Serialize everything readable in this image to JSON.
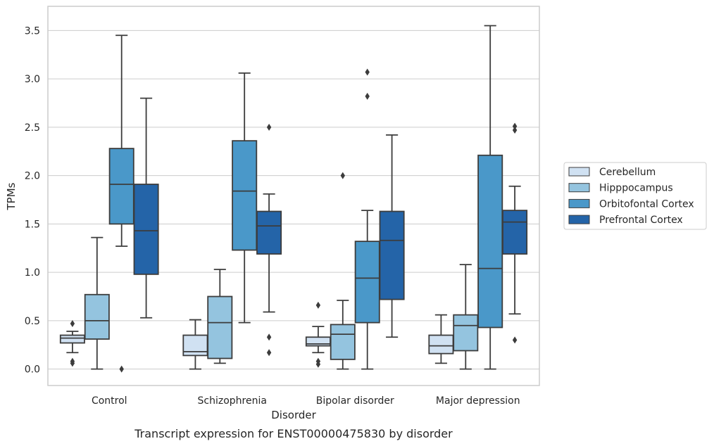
{
  "chart_data": {
    "type": "box",
    "xlabel": "Disorder",
    "ylabel": "TPMs",
    "caption": "Transcript expression for ENST00000475830 by disorder",
    "ylim": [
      -0.17,
      3.75
    ],
    "yticks": [
      "0.0",
      "0.5",
      "1.0",
      "1.5",
      "2.0",
      "2.5",
      "3.0",
      "3.5"
    ],
    "yticks_values": [
      0.0,
      0.5,
      1.0,
      1.5,
      2.0,
      2.5,
      3.0,
      3.5
    ],
    "grid": true,
    "legend_position": "right",
    "categories": [
      "Control",
      "Schizophrenia",
      "Bipolar disorder",
      "Major depression"
    ],
    "series": [
      {
        "name": "Cerebellum",
        "color": "#d0e1f2",
        "boxes": [
          {
            "whislo": 0.17,
            "q1": 0.27,
            "med": 0.32,
            "q3": 0.35,
            "whishi": 0.39,
            "fliers": [
              0.47,
              0.08,
              0.06
            ]
          },
          {
            "whislo": 0.0,
            "q1": 0.14,
            "med": 0.18,
            "q3": 0.35,
            "whishi": 0.51,
            "fliers": []
          },
          {
            "whislo": 0.17,
            "q1": 0.24,
            "med": 0.26,
            "q3": 0.33,
            "whishi": 0.44,
            "fliers": [
              0.66,
              0.08,
              0.05
            ]
          },
          {
            "whislo": 0.06,
            "q1": 0.16,
            "med": 0.24,
            "q3": 0.35,
            "whishi": 0.56,
            "fliers": []
          }
        ]
      },
      {
        "name": "Hipppocampus",
        "color": "#94c4df",
        "boxes": [
          {
            "whislo": 0.0,
            "q1": 0.31,
            "med": 0.5,
            "q3": 0.77,
            "whishi": 1.36,
            "fliers": []
          },
          {
            "whislo": 0.06,
            "q1": 0.11,
            "med": 0.48,
            "q3": 0.75,
            "whishi": 1.03,
            "fliers": []
          },
          {
            "whislo": 0.0,
            "q1": 0.1,
            "med": 0.36,
            "q3": 0.46,
            "whishi": 0.71,
            "fliers": [
              2.0
            ]
          },
          {
            "whislo": 0.0,
            "q1": 0.19,
            "med": 0.45,
            "q3": 0.56,
            "whishi": 1.08,
            "fliers": []
          }
        ]
      },
      {
        "name": "Orbitofontal Cortex",
        "color": "#4a98c9",
        "boxes": [
          {
            "whislo": 1.27,
            "q1": 1.5,
            "med": 1.91,
            "q3": 2.28,
            "whishi": 3.45,
            "fliers": [
              0.0
            ]
          },
          {
            "whislo": 0.48,
            "q1": 1.23,
            "med": 1.84,
            "q3": 2.36,
            "whishi": 3.06,
            "fliers": []
          },
          {
            "whislo": 0.0,
            "q1": 0.48,
            "med": 0.94,
            "q3": 1.32,
            "whishi": 1.64,
            "fliers": [
              3.07,
              2.82
            ]
          },
          {
            "whislo": 0.0,
            "q1": 0.43,
            "med": 1.04,
            "q3": 2.21,
            "whishi": 3.55,
            "fliers": []
          }
        ]
      },
      {
        "name": "Prefrontal Cortex",
        "color": "#2464a8",
        "boxes": [
          {
            "whislo": 0.53,
            "q1": 0.98,
            "med": 1.43,
            "q3": 1.91,
            "whishi": 2.8,
            "fliers": []
          },
          {
            "whislo": 0.59,
            "q1": 1.19,
            "med": 1.48,
            "q3": 1.63,
            "whishi": 1.81,
            "fliers": [
              2.5,
              0.33,
              0.17
            ]
          },
          {
            "whislo": 0.33,
            "q1": 0.72,
            "med": 1.33,
            "q3": 1.63,
            "whishi": 2.42,
            "fliers": []
          },
          {
            "whislo": 0.57,
            "q1": 1.19,
            "med": 1.52,
            "q3": 1.64,
            "whishi": 1.89,
            "fliers": [
              2.51,
              2.47,
              0.3
            ]
          }
        ]
      }
    ]
  }
}
